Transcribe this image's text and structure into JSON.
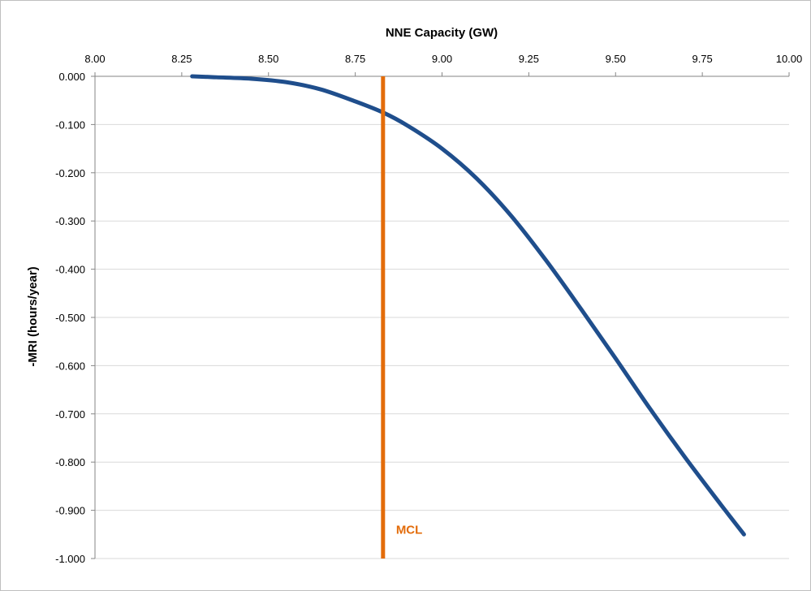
{
  "chart_data": {
    "type": "line",
    "title": "",
    "xlabel": "NNE Capacity (GW)",
    "ylabel": "-MRI (hours/year)",
    "xlim": [
      8.0,
      10.0
    ],
    "ylim": [
      -1.0,
      0.0
    ],
    "x_axis_position": "top",
    "x_ticks": [
      "8.00",
      "8.25",
      "8.50",
      "8.75",
      "9.00",
      "9.25",
      "9.50",
      "9.75",
      "10.00"
    ],
    "y_ticks": [
      "0.000",
      "-0.100",
      "-0.200",
      "-0.300",
      "-0.400",
      "-0.500",
      "-0.600",
      "-0.700",
      "-0.800",
      "-0.900",
      "-1.000"
    ],
    "grid": "horizontal",
    "legend": "none",
    "series": [
      {
        "color": "#1f4e8c",
        "x": [
          8.28,
          8.35,
          8.45,
          8.55,
          8.65,
          8.75,
          8.83,
          8.9,
          9.0,
          9.1,
          9.2,
          9.3,
          9.4,
          9.5,
          9.6,
          9.7,
          9.8,
          9.87
        ],
        "y": [
          0.0,
          -0.002,
          -0.005,
          -0.012,
          -0.027,
          -0.052,
          -0.075,
          -0.102,
          -0.15,
          -0.212,
          -0.29,
          -0.382,
          -0.482,
          -0.585,
          -0.69,
          -0.79,
          -0.885,
          -0.95
        ]
      }
    ],
    "reference_lines": [
      {
        "label": "MCL",
        "x": 8.83,
        "color": "#e36c0a"
      }
    ]
  }
}
